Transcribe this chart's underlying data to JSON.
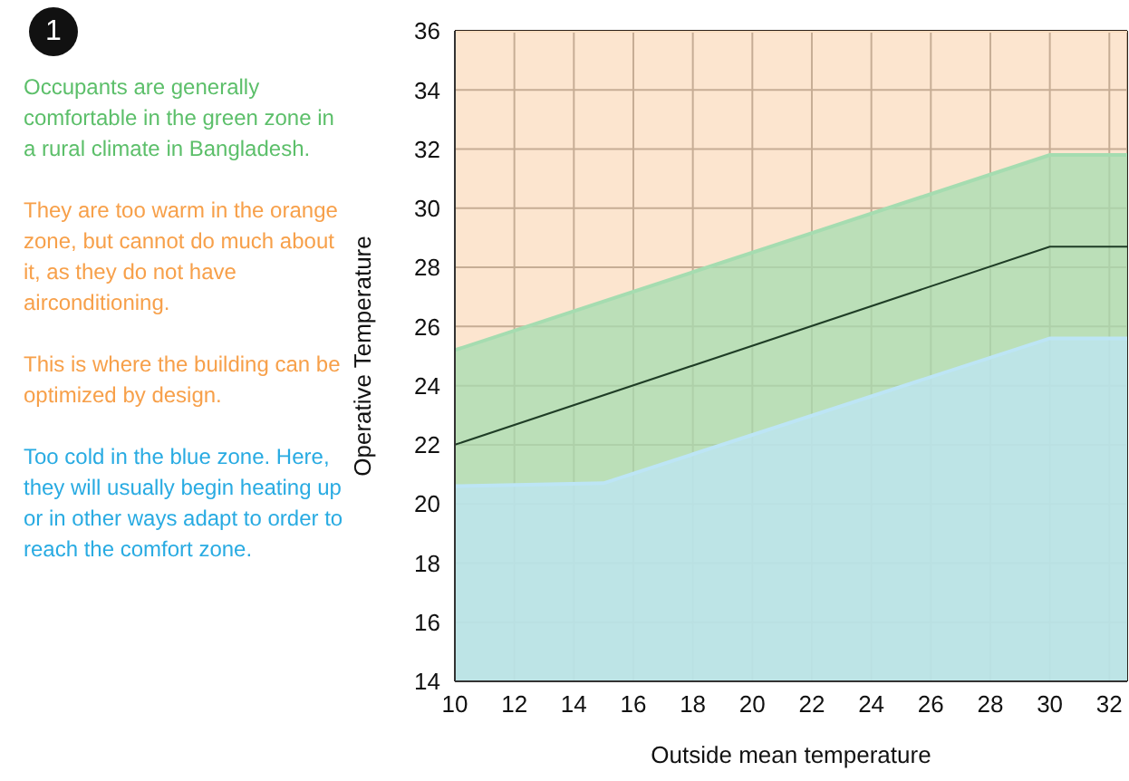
{
  "chart_data": {
    "type": "area",
    "xlabel": "Outside mean temperature",
    "ylabel": "Operative Temperature",
    "annotations": [
      "1",
      "Occupants are generally comfortable in the green zone in a rural climate in Bangladesh.",
      "They are too warm in the orange zone, but cannot do much about it, as they do not have airconditioning.",
      "This is where the building can be optimized by design.",
      "Too cold in the blue zone. Here, they will usually begin heating up or in other ways adapt to order to reach the comfort zone."
    ],
    "series": [
      {
        "color": "#fbdcbf",
        "x": [
          10,
          32.6
        ],
        "values": [
          36,
          36
        ]
      },
      {
        "color": "#a5dcb0",
        "x": [
          10,
          30,
          32.6
        ],
        "values": [
          25.2,
          31.8,
          31.8
        ]
      },
      {
        "color": "#bde5f5",
        "x": [
          10,
          15,
          30,
          32.6
        ],
        "values": [
          20.6,
          20.7,
          25.6,
          25.6
        ]
      },
      {
        "type": "line",
        "color": "#1f3d26",
        "x": [
          10,
          30,
          32.6
        ],
        "values": [
          22,
          28.7,
          28.7
        ]
      }
    ],
    "xlim": [
      10,
      32.6
    ],
    "xticks": [
      10,
      12,
      14,
      16,
      18,
      20,
      22,
      24,
      26,
      28,
      30,
      32
    ],
    "ylim": [
      14,
      36
    ],
    "yticks": [
      14,
      16,
      18,
      20,
      22,
      24,
      26,
      28,
      30,
      32,
      34,
      36
    ],
    "grid": true
  }
}
